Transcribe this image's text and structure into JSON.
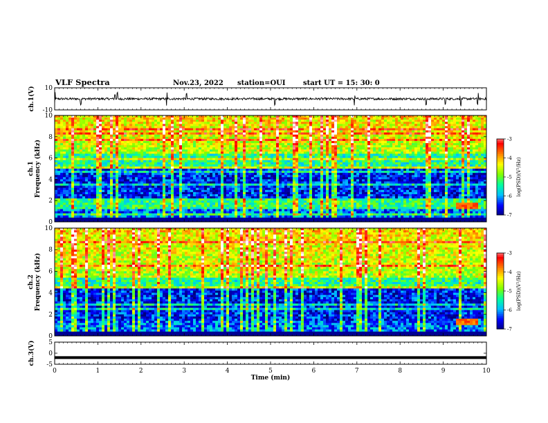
{
  "header": {
    "title": "VLF Spectra",
    "date": "Nov.23, 2022",
    "station": "station=OUI",
    "start": "start  UT =   15: 30: 0"
  },
  "chart_data": [
    {
      "type": "line",
      "panel": "ch1-waveform",
      "ylabel": "ch.1(V)",
      "ylim": [
        -10,
        10
      ],
      "yticks": [
        "10",
        "-10"
      ],
      "xlim": [
        0,
        10
      ],
      "baseline": 0,
      "amplitude_typical": 1.0,
      "spike_times_min": [
        0.0,
        0.6,
        1.4,
        1.45,
        2.6,
        3.05,
        5.1,
        6.95,
        8.6,
        9.05,
        9.4,
        9.8
      ]
    },
    {
      "type": "heatmap",
      "panel": "ch1-spectrogram",
      "ylabel": "ch.1\nFrequency (kHz)",
      "ylim": [
        0,
        10
      ],
      "yticks": [
        "0",
        "2",
        "4",
        "6",
        "8",
        "10"
      ],
      "xlim": [
        0,
        10
      ],
      "colorbar": {
        "label": "log(PSD)(V²/Hz)",
        "range": [
          -7,
          -3
        ],
        "ticks": [
          "-3",
          "-4",
          "-5",
          "-6",
          "-7"
        ]
      },
      "features": {
        "low_power_band_khz": [
          2.2,
          5.0
        ],
        "high_power_band_khz": [
          6.5,
          10.0
        ],
        "low_band_khz": [
          0.0,
          2.0
        ],
        "late_emission": {
          "t_min": [
            9.3,
            9.8
          ],
          "f_khz": [
            1.2,
            1.8
          ]
        }
      }
    },
    {
      "type": "heatmap",
      "panel": "ch2-spectrogram",
      "ylabel": "ch.2\nFrequency (kHz)",
      "ylim": [
        0,
        10
      ],
      "yticks": [
        "0",
        "2",
        "4",
        "6",
        "8",
        "10"
      ],
      "xlim": [
        0,
        10
      ],
      "colorbar": {
        "label": "log(PSD)(V²/Hz)",
        "range": [
          -7,
          -3
        ],
        "ticks": [
          "-3",
          "-4",
          "-5",
          "-6",
          "-7"
        ]
      },
      "features": {
        "low_power_band_khz": [
          1.5,
          4.5
        ],
        "high_power_band_khz": [
          5.5,
          10.0
        ],
        "low_band_khz": [
          0.0,
          1.5
        ],
        "late_emission": {
          "t_min": [
            9.3,
            9.8
          ],
          "f_khz": [
            1.0,
            1.6
          ]
        }
      }
    },
    {
      "type": "line",
      "panel": "ch3-waveform",
      "ylabel": "ch.3(V)",
      "ylim": [
        -5,
        5
      ],
      "yticks": [
        "5",
        "0",
        "-5"
      ],
      "xlim": [
        0,
        10
      ],
      "constant_value": -2
    }
  ],
  "xaxis": {
    "label": "Time (min)",
    "ticks": [
      "0",
      "1",
      "2",
      "3",
      "4",
      "5",
      "6",
      "7",
      "8",
      "9",
      "10"
    ]
  },
  "colors": {
    "colormap": [
      "#00007f",
      "#0000ff",
      "#00bfff",
      "#00ffa0",
      "#7fff00",
      "#ffff00",
      "#ff8000",
      "#ff0000",
      "#ffffff"
    ]
  }
}
